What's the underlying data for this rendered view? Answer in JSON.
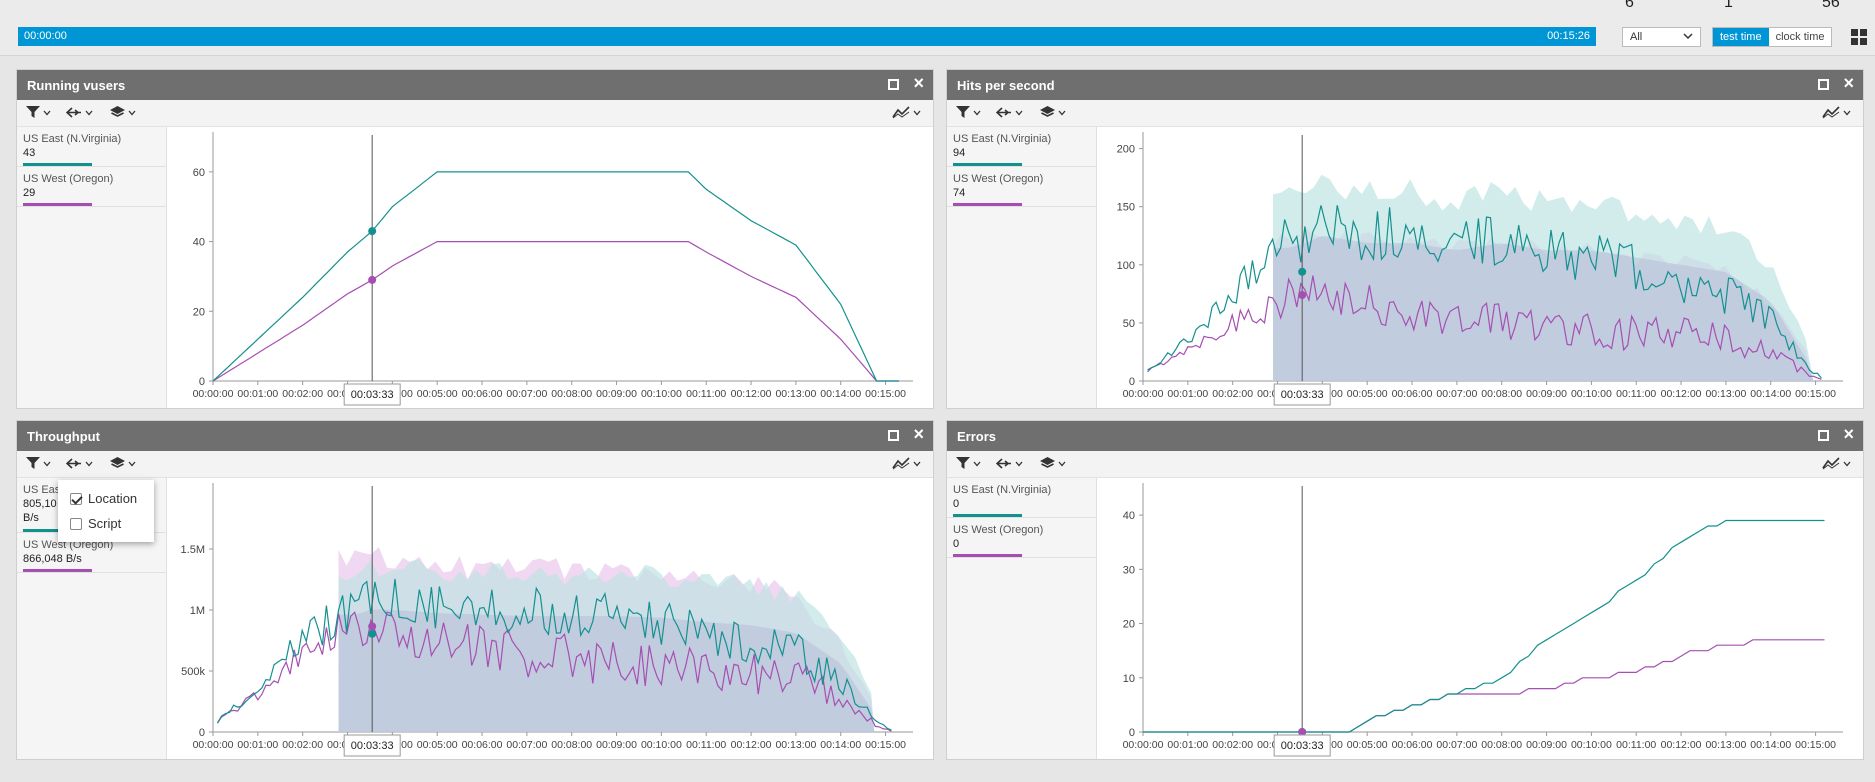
{
  "header": {
    "top_numbers": [
      "6",
      "1",
      "56"
    ],
    "timeline": {
      "start": "00:00:00",
      "end": "00:15:26"
    },
    "filter_select": {
      "value": "All"
    },
    "time_toggle": {
      "test_time": "test time",
      "clock_time": "clock time"
    }
  },
  "colors": {
    "east": "#13918f",
    "west": "#a64fb2",
    "timeline": "#0096d6",
    "header": "#6f6f6f"
  },
  "icons": [
    "filter-icon",
    "compare-icon",
    "layers-icon",
    "chart-type-icon",
    "maximize-icon",
    "close-icon",
    "grid-view-icon"
  ],
  "cursor_time": "00:03:33",
  "x_ticks": [
    "00:00:00",
    "00:01:00",
    "00:02:00",
    "00:03:00",
    "00:04:00",
    "00:05:00",
    "00:06:00",
    "00:07:00",
    "00:08:00",
    "00:09:00",
    "00:10:00",
    "00:11:00",
    "00:12:00",
    "00:13:00",
    "00:14:00",
    "00:15:00"
  ],
  "panels": [
    {
      "id": "running-vusers",
      "title": "Running vusers",
      "legend": [
        {
          "name": "US East (N.Virginia)",
          "value": "43"
        },
        {
          "name": "US West (Oregon)",
          "value": "29"
        }
      ]
    },
    {
      "id": "hits-per-second",
      "title": "Hits per second",
      "legend": [
        {
          "name": "US East (N.Virginia)",
          "value": "94"
        },
        {
          "name": "US West (Oregon)",
          "value": "74"
        }
      ]
    },
    {
      "id": "throughput",
      "title": "Throughput",
      "legend": [
        {
          "name": "US East",
          "value": "805,10",
          "unit": "B/s"
        },
        {
          "name": "US West (Oregon)",
          "value": "866,048 B/s"
        }
      ]
    },
    {
      "id": "errors",
      "title": "Errors",
      "legend": [
        {
          "name": "US East (N.Virginia)",
          "value": "0"
        },
        {
          "name": "US West (Oregon)",
          "value": "0"
        }
      ]
    }
  ],
  "popup": {
    "options": [
      {
        "label": "Location",
        "checked": true
      },
      {
        "label": "Script",
        "checked": false
      }
    ]
  },
  "chart_data": [
    {
      "type": "line",
      "title": "Running vusers",
      "ylim": [
        0,
        70
      ],
      "y_ticks": [
        0,
        20,
        40,
        60
      ],
      "x_minutes": [
        0,
        1,
        2,
        3,
        3.55,
        4,
        5,
        6,
        7,
        8,
        9,
        10,
        10.6,
        11,
        12,
        13,
        14,
        14.8,
        15.3
      ],
      "series": [
        {
          "name": "US East (N.Virginia)",
          "values": [
            0,
            12,
            24,
            37,
            43,
            50,
            60,
            60,
            60,
            60,
            60,
            60,
            60,
            55,
            46,
            39,
            22,
            0,
            0
          ]
        },
        {
          "name": "US West (Oregon)",
          "values": [
            0,
            8,
            16,
            25,
            29,
            33,
            40,
            40,
            40,
            40,
            40,
            40,
            40,
            37,
            30,
            24,
            12,
            0,
            0
          ]
        }
      ]
    },
    {
      "type": "line",
      "title": "Hits per second",
      "ylim": [
        0,
        210
      ],
      "y_ticks": [
        0,
        50,
        100,
        150,
        200
      ],
      "x_minutes": [
        0,
        1,
        2,
        3,
        3.55,
        4,
        5,
        6,
        7,
        8,
        9,
        10,
        11,
        12,
        13,
        14,
        14.8,
        15.2
      ],
      "series": [
        {
          "name": "US East (N.Virginia)",
          "values": [
            5,
            30,
            60,
            90,
            94,
            100,
            95,
            95,
            90,
            95,
            90,
            90,
            85,
            80,
            75,
            55,
            15,
            0
          ]
        },
        {
          "name": "US West (Oregon)",
          "values": [
            5,
            25,
            45,
            65,
            74,
            70,
            70,
            68,
            65,
            68,
            65,
            65,
            60,
            60,
            55,
            35,
            10,
            0
          ]
        }
      ]
    },
    {
      "type": "line",
      "title": "Throughput",
      "ylim": [
        0,
        2000000
      ],
      "y_ticks": [
        0,
        500000,
        1000000,
        1500000
      ],
      "y_tick_labels": [
        "0",
        "500k",
        "1M",
        "1.5M"
      ],
      "x_minutes": [
        0,
        1,
        2,
        3,
        3.55,
        4,
        5,
        6,
        7,
        8,
        9,
        10,
        11,
        12,
        13,
        14,
        14.8,
        15.2
      ],
      "series": [
        {
          "name": "US East",
          "values": [
            50000,
            300000,
            600000,
            750000,
            805100,
            800000,
            780000,
            770000,
            760000,
            760000,
            760000,
            750000,
            720000,
            700000,
            650000,
            450000,
            100000,
            0
          ]
        },
        {
          "name": "US West (Oregon)",
          "values": [
            50000,
            280000,
            580000,
            800000,
            866048,
            820000,
            800000,
            790000,
            780000,
            780000,
            770000,
            760000,
            740000,
            720000,
            650000,
            400000,
            80000,
            0
          ]
        }
      ]
    },
    {
      "type": "line",
      "title": "Errors",
      "ylim": [
        0,
        45
      ],
      "y_ticks": [
        0,
        10,
        20,
        30,
        40
      ],
      "x_minutes": [
        0,
        1,
        2,
        3,
        4,
        4.6,
        5,
        6,
        7,
        8,
        9,
        10,
        11,
        12,
        12.3,
        13,
        14,
        15,
        15.3
      ],
      "series": [
        {
          "name": "US East (N.Virginia)",
          "values": [
            0,
            0,
            0,
            0,
            0,
            0,
            2,
            5,
            7,
            10,
            17,
            22,
            28,
            35,
            37,
            39,
            39,
            39,
            39
          ]
        },
        {
          "name": "US West (Oregon)",
          "values": [
            0,
            0,
            0,
            0,
            0,
            0,
            2,
            5,
            7,
            7,
            8,
            10,
            11,
            14,
            15,
            16,
            17,
            17,
            17
          ]
        }
      ]
    }
  ]
}
